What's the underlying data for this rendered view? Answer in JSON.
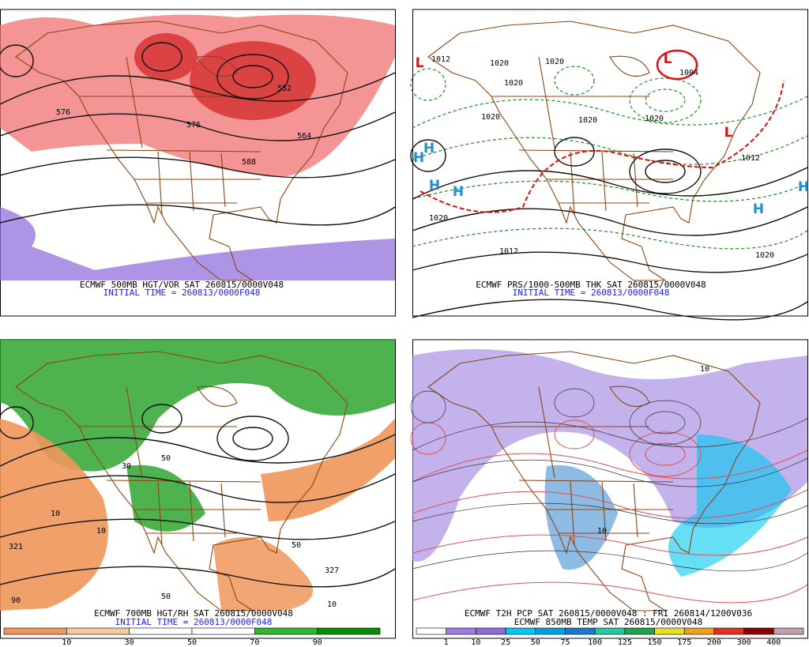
{
  "panels": [
    {
      "caption": "ECMWF 500MB HGT/VOR SAT 260815/0000V048",
      "initial_time": "INITIAL TIME = 260813/0000F048",
      "labels": [
        "576",
        "564",
        "552",
        "576",
        "588"
      ]
    },
    {
      "caption": "ECMWF PRS/1000-500MB THK SAT 260815/0000V048",
      "initial_time": "INITIAL TIME = 260813/0000F048",
      "labels": [
        "1012",
        "1020",
        "1020",
        "1020",
        "1020",
        "1020",
        "1020",
        "1004",
        "1012",
        "1020",
        "1012",
        "1020",
        "L",
        "L",
        "L",
        "H",
        "H",
        "H",
        "H",
        "H",
        "H"
      ]
    },
    {
      "caption": "ECMWF 700MB HGT/RH SAT 260815/0000V048",
      "initial_time": "INITIAL TIME = 260813/0000F048",
      "labels": [
        "10",
        "10",
        "321",
        "50",
        "50",
        "50",
        "30",
        "327",
        "90",
        "10"
      ],
      "colorbar": {
        "labels": [
          "10",
          "30",
          "50",
          "70",
          "90"
        ],
        "colors": [
          "#f0965a",
          "#f8c8a0",
          "#ffffff",
          "#ffffff",
          "#33b533",
          "#0a8a0a"
        ]
      }
    },
    {
      "caption": "ECMWF T2H PCP SAT 260815/0000V048 : FRI 260814/1200V036",
      "initial_time": "ECMWF 850MB TEMP SAT 260815/0000V048",
      "labels": [
        "10",
        "10"
      ],
      "colorbar": {
        "labels": [
          "1",
          "10",
          "25",
          "50",
          "75",
          "100",
          "125",
          "150",
          "175",
          "200",
          "300",
          "400"
        ],
        "colors": [
          "#ffffff",
          "#9b7fe0",
          "#8a6ed8",
          "#00c8f0",
          "#00a0e0",
          "#1e78c8",
          "#28c8a0",
          "#20a050",
          "#e8e020",
          "#f0a020",
          "#e03020",
          "#8b0000",
          "#c0a0b0"
        ]
      }
    }
  ]
}
